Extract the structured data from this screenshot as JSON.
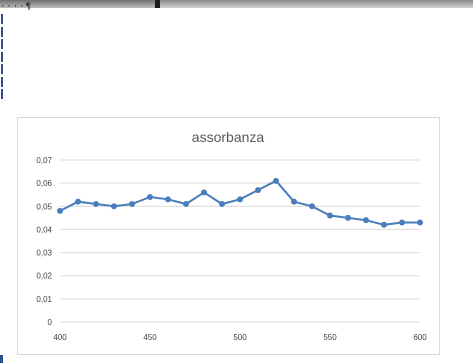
{
  "top_dots": "····¶",
  "chart_data": {
    "type": "line",
    "title": "assorbanza",
    "x": [
      400,
      410,
      420,
      430,
      440,
      450,
      460,
      470,
      480,
      490,
      500,
      510,
      520,
      530,
      540,
      550,
      560,
      570,
      580,
      590,
      600
    ],
    "series": [
      {
        "values": [
          0.048,
          0.052,
          0.051,
          0.05,
          0.051,
          0.054,
          0.053,
          0.051,
          0.056,
          0.051,
          0.053,
          0.057,
          0.061,
          0.052,
          0.05,
          0.046,
          0.045,
          0.044,
          0.042,
          0.043,
          0.043
        ]
      }
    ],
    "xlim": [
      400,
      600
    ],
    "ylim": [
      0,
      0.07
    ],
    "xticks": [
      400,
      450,
      500,
      550,
      600
    ],
    "xtick_labels": [
      "400",
      "450",
      "500",
      "550",
      "600"
    ],
    "yticks": [
      0,
      0.01,
      0.02,
      0.03,
      0.04,
      0.05,
      0.06,
      0.07
    ],
    "ytick_labels": [
      "0",
      "0,01",
      "0,02",
      "0,03",
      "0,04",
      "0,05",
      "0,06",
      "0,07"
    ],
    "grid": true,
    "legend": "none",
    "line_color": "#4a7ebb"
  }
}
